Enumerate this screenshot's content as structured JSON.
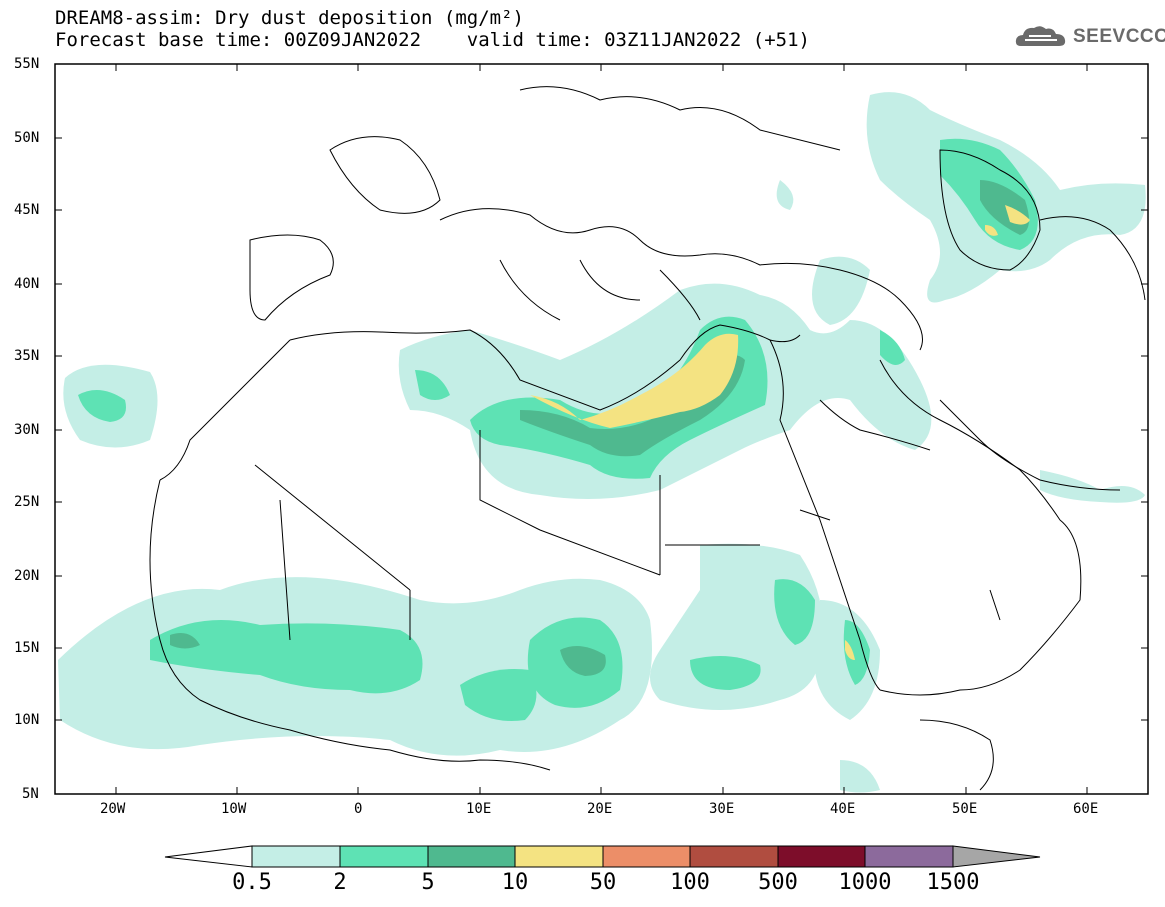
{
  "title": {
    "line1": "DREAM8-assim: Dry dust deposition (mg/m²)",
    "line2": "Forecast base time: 00Z09JAN2022    valid time: 03Z11JAN2022 (+51)"
  },
  "logo": {
    "text": "SEEVCCC",
    "icon": "cloud-icon"
  },
  "map": {
    "lat_labels": [
      "55N",
      "50N",
      "45N",
      "40N",
      "35N",
      "30N",
      "25N",
      "20N",
      "15N",
      "10N",
      "5N"
    ],
    "lon_labels": [
      "20W",
      "10W",
      "0",
      "10E",
      "20E",
      "30E",
      "40E",
      "50E",
      "60E"
    ]
  },
  "colorbar": {
    "labels": [
      "0.5",
      "2",
      "5",
      "10",
      "50",
      "100",
      "500",
      "1000",
      "1500"
    ],
    "colors": [
      "#c4eee6",
      "#5ee2b4",
      "#4fb98f",
      "#f4e382",
      "#ec8e68",
      "#b04d40",
      "#7d0d2a",
      "#8c6a9c",
      "#a6a6a6"
    ]
  }
}
